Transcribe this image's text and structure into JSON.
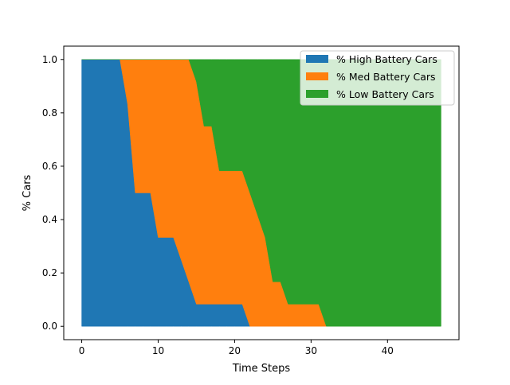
{
  "chart_data": {
    "type": "area",
    "stacked": true,
    "title": "",
    "xlabel": "Time Steps",
    "ylabel": "% Cars",
    "xlim": [
      -2.35,
      49.35
    ],
    "ylim": [
      -0.05,
      1.05
    ],
    "x_ticks": [
      0,
      10,
      20,
      30,
      40
    ],
    "y_ticks": [
      0.0,
      0.2,
      0.4,
      0.6,
      0.8,
      1.0
    ],
    "x_tick_labels": [
      "0",
      "10",
      "20",
      "30",
      "40"
    ],
    "y_tick_labels": [
      "0.0",
      "0.2",
      "0.4",
      "0.6",
      "0.8",
      "1.0"
    ],
    "grid": false,
    "legend_position": "top-right",
    "x": [
      0,
      5,
      6,
      7,
      8,
      9,
      10,
      11,
      12,
      13,
      14,
      15,
      16,
      17,
      18,
      19,
      20,
      21,
      22,
      23,
      24,
      25,
      26,
      27,
      28,
      29,
      30,
      31,
      32,
      47
    ],
    "series": [
      {
        "name": "% High Battery Cars",
        "color": "#1f77b4",
        "values": [
          1.0,
          1.0,
          0.833,
          0.5,
          0.5,
          0.5,
          0.333,
          0.333,
          0.333,
          0.25,
          0.167,
          0.083,
          0.083,
          0.083,
          0.083,
          0.083,
          0.083,
          0.083,
          0.0,
          0.0,
          0.0,
          0.0,
          0.0,
          0.0,
          0.0,
          0.0,
          0.0,
          0.0,
          0.0,
          0.0
        ]
      },
      {
        "name": "% Med Battery Cars",
        "color": "#ff7f0e",
        "values": [
          0.0,
          0.0,
          0.167,
          0.5,
          0.5,
          0.5,
          0.667,
          0.667,
          0.667,
          0.75,
          0.833,
          0.834,
          0.667,
          0.667,
          0.5,
          0.5,
          0.5,
          0.5,
          0.5,
          0.417,
          0.333,
          0.167,
          0.167,
          0.083,
          0.083,
          0.083,
          0.083,
          0.083,
          0.0,
          0.0
        ]
      },
      {
        "name": "% Low Battery Cars",
        "color": "#2ca02c",
        "values": [
          0.0,
          0.0,
          0.0,
          0.0,
          0.0,
          0.0,
          0.0,
          0.0,
          0.0,
          0.0,
          0.0,
          0.083,
          0.25,
          0.25,
          0.417,
          0.417,
          0.417,
          0.417,
          0.5,
          0.583,
          0.667,
          0.833,
          0.833,
          0.917,
          0.917,
          0.917,
          0.917,
          0.917,
          1.0,
          1.0
        ]
      }
    ]
  }
}
